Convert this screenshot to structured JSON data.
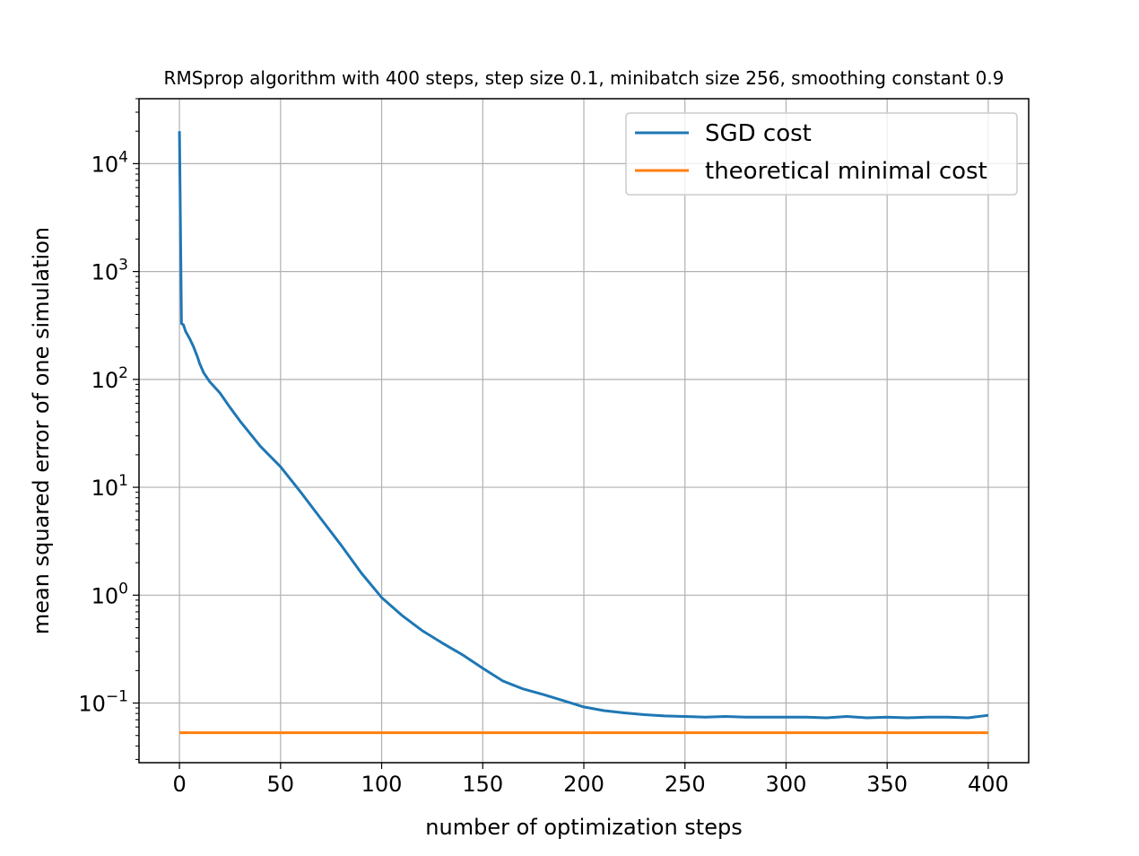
{
  "chart_data": {
    "type": "line",
    "title": "RMSprop algorithm with 400 steps, step size 0.1, minibatch size 256, smoothing constant 0.9",
    "xlabel": "number of optimization steps",
    "ylabel": "mean squared error of one simulation",
    "xlim": [
      -20,
      420
    ],
    "ylim": [
      0.028,
      40000
    ],
    "yscale": "log",
    "grid": true,
    "legend_position": "upper right",
    "xticks": [
      0,
      50,
      100,
      150,
      200,
      250,
      300,
      350,
      400
    ],
    "yticks": [
      {
        "value": 0.1,
        "base": "10",
        "exp": "−1"
      },
      {
        "value": 1,
        "base": "10",
        "exp": "0"
      },
      {
        "value": 10,
        "base": "10",
        "exp": "1"
      },
      {
        "value": 100,
        "base": "10",
        "exp": "2"
      },
      {
        "value": 1000,
        "base": "10",
        "exp": "3"
      },
      {
        "value": 10000,
        "base": "10",
        "exp": "4"
      }
    ],
    "series": [
      {
        "name": "SGD cost",
        "color": "#1f77b4",
        "x": [
          0,
          1,
          2,
          3,
          5,
          7,
          9,
          10,
          12,
          15,
          20,
          25,
          30,
          40,
          50,
          60,
          70,
          80,
          90,
          100,
          110,
          120,
          130,
          140,
          150,
          160,
          170,
          180,
          190,
          200,
          210,
          220,
          230,
          240,
          250,
          260,
          270,
          280,
          290,
          300,
          310,
          320,
          330,
          340,
          350,
          360,
          370,
          380,
          390,
          400
        ],
        "y": [
          20000,
          330,
          320,
          280,
          240,
          200,
          160,
          140,
          115,
          95,
          75,
          55,
          41,
          24,
          15.5,
          9.0,
          5.1,
          2.9,
          1.6,
          0.95,
          0.65,
          0.47,
          0.36,
          0.28,
          0.21,
          0.16,
          0.135,
          0.12,
          0.105,
          0.092,
          0.085,
          0.081,
          0.078,
          0.076,
          0.075,
          0.074,
          0.075,
          0.074,
          0.074,
          0.074,
          0.074,
          0.073,
          0.075,
          0.073,
          0.074,
          0.073,
          0.074,
          0.074,
          0.073,
          0.077
        ]
      },
      {
        "name": "theoretical minimal cost",
        "color": "#ff7f0e",
        "x": [
          0,
          400
        ],
        "y": [
          0.053,
          0.053
        ]
      }
    ]
  }
}
